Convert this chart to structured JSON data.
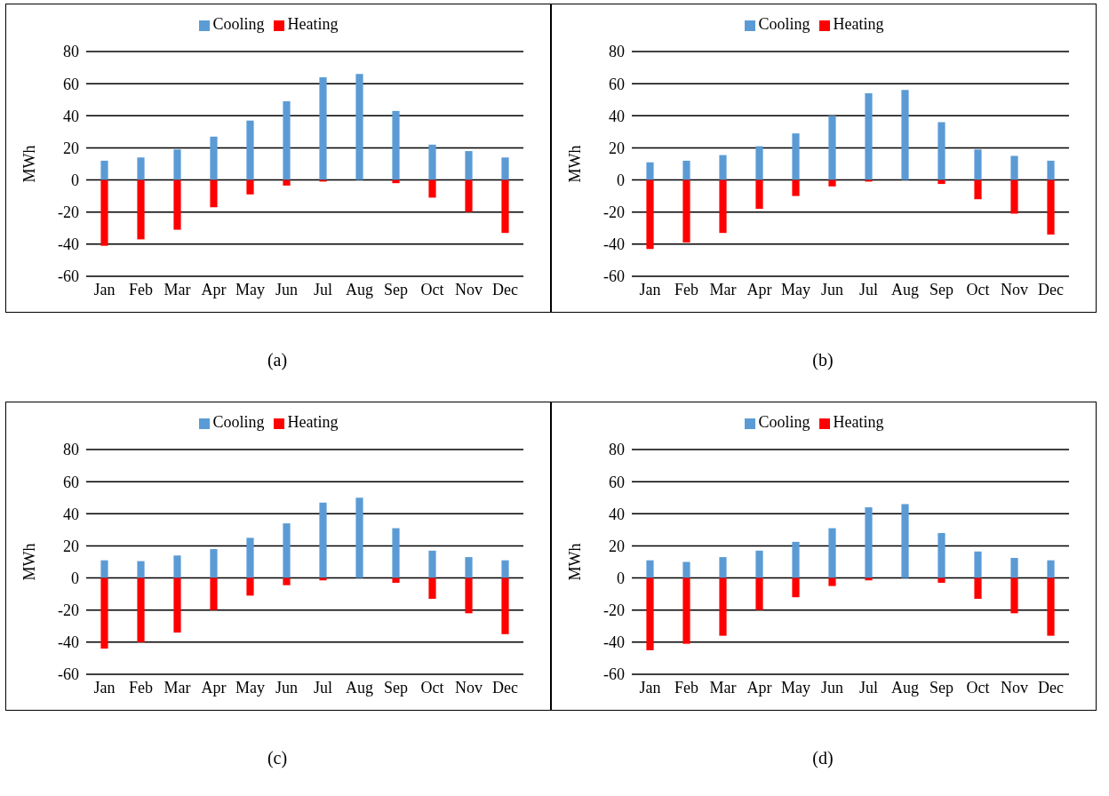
{
  "chart_data": [
    {
      "type": "bar",
      "annotations": [
        "(a)"
      ],
      "ylabel": "MWh",
      "categories": [
        "Jan",
        "Feb",
        "Mar",
        "Apr",
        "May",
        "Jun",
        "Jul",
        "Aug",
        "Sep",
        "Oct",
        "Nov",
        "Dec"
      ],
      "stacked": true,
      "ylim": [
        -60,
        80
      ],
      "yticks": [
        -60,
        -40,
        -20,
        0,
        20,
        40,
        60,
        80
      ],
      "grid": "y",
      "legend": "top",
      "series": [
        {
          "name": "Cooling",
          "color": "#5b9bd5",
          "values": [
            12,
            14,
            19,
            27,
            37,
            49,
            64,
            66,
            43,
            22,
            18,
            14
          ]
        },
        {
          "name": "Heating",
          "color": "#ff0000",
          "values": [
            -41,
            -37,
            -31,
            -17,
            -9,
            -3.5,
            -1,
            0,
            -2,
            -11,
            -20,
            -33
          ]
        }
      ]
    },
    {
      "type": "bar",
      "annotations": [
        "(b)"
      ],
      "ylabel": "MWh",
      "categories": [
        "Jan",
        "Feb",
        "Mar",
        "Apr",
        "May",
        "Jun",
        "Jul",
        "Aug",
        "Sep",
        "Oct",
        "Nov",
        "Dec"
      ],
      "stacked": true,
      "ylim": [
        -60,
        80
      ],
      "yticks": [
        -60,
        -40,
        -20,
        0,
        20,
        40,
        60,
        80
      ],
      "grid": "y",
      "legend": "top",
      "series": [
        {
          "name": "Cooling",
          "color": "#5b9bd5",
          "values": [
            11,
            12,
            15.5,
            21,
            29,
            40,
            54,
            56,
            36,
            19,
            15,
            12
          ]
        },
        {
          "name": "Heating",
          "color": "#ff0000",
          "values": [
            -43,
            -39,
            -33,
            -18,
            -10,
            -4,
            -1,
            0,
            -2.5,
            -12,
            -21,
            -34
          ]
        }
      ]
    },
    {
      "type": "bar",
      "annotations": [
        "(c)"
      ],
      "ylabel": "MWh",
      "categories": [
        "Jan",
        "Feb",
        "Mar",
        "Apr",
        "May",
        "Jun",
        "Jul",
        "Aug",
        "Sep",
        "Oct",
        "Nov",
        "Dec"
      ],
      "stacked": true,
      "ylim": [
        -60,
        80
      ],
      "yticks": [
        -60,
        -40,
        -20,
        0,
        20,
        40,
        60,
        80
      ],
      "grid": "y",
      "legend": "top",
      "series": [
        {
          "name": "Cooling",
          "color": "#5b9bd5",
          "values": [
            11,
            10.5,
            14,
            18,
            25,
            34,
            47,
            50,
            31,
            17,
            13,
            11
          ]
        },
        {
          "name": "Heating",
          "color": "#ff0000",
          "values": [
            -44,
            -40,
            -34,
            -20,
            -11,
            -4.5,
            -1.5,
            null,
            -3,
            -13,
            -22,
            -35
          ]
        }
      ]
    },
    {
      "type": "bar",
      "annotations": [
        "(d)"
      ],
      "ylabel": "MWh",
      "categories": [
        "Jan",
        "Feb",
        "Mar",
        "Apr",
        "May",
        "Jun",
        "Jul",
        "Aug",
        "Sep",
        "Oct",
        "Nov",
        "Dec"
      ],
      "stacked": true,
      "ylim": [
        -60,
        80
      ],
      "yticks": [
        -60,
        -40,
        -20,
        0,
        20,
        40,
        60,
        80
      ],
      "grid": "y",
      "legend": "top",
      "series": [
        {
          "name": "Cooling",
          "color": "#5b9bd5",
          "values": [
            11,
            10,
            13,
            17,
            22.5,
            31,
            44,
            46,
            28,
            16.5,
            12.5,
            11
          ]
        },
        {
          "name": "Heating",
          "color": "#ff0000",
          "values": [
            -45,
            -41,
            -36,
            -20,
            -12,
            -5,
            -1.5,
            null,
            -3,
            -13,
            -22,
            -36
          ]
        }
      ]
    }
  ]
}
